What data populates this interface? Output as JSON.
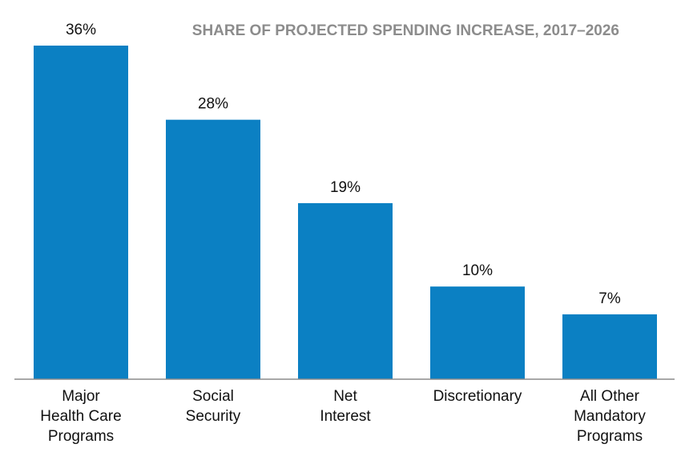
{
  "chart_data": {
    "type": "bar",
    "title": "SHARE OF PROJECTED SPENDING INCREASE, 2017–2026",
    "categories": [
      "Major Health Care Programs",
      "Social Security",
      "Net Interest",
      "Discretionary",
      "All Other Mandatory Programs"
    ],
    "category_lines": [
      [
        "Major",
        "Health Care",
        "Programs"
      ],
      [
        "Social",
        "Security"
      ],
      [
        "Net",
        "Interest"
      ],
      [
        "Discretionary"
      ],
      [
        "All Other",
        "Mandatory",
        "Programs"
      ]
    ],
    "values": [
      36,
      28,
      19,
      10,
      7
    ],
    "value_labels": [
      "36%",
      "28%",
      "19%",
      "10%",
      "7%"
    ],
    "ylim": [
      0,
      36
    ],
    "grid": false,
    "xlabel": "",
    "ylabel": "",
    "colors": {
      "bar": "#0b80c3",
      "axis": "#8c8c8c",
      "title": "#8c8c8c",
      "text": "#111111"
    }
  }
}
